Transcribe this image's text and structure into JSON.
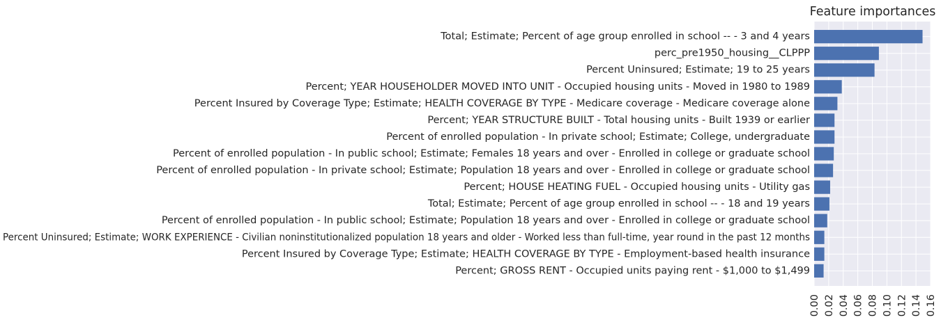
{
  "chart_data": {
    "type": "bar",
    "orientation": "horizontal",
    "title": "Feature importances",
    "xlabel": "",
    "ylabel": "",
    "xlim": [
      0,
      0.16
    ],
    "xticks": [
      "0.00",
      "0.02",
      "0.04",
      "0.06",
      "0.08",
      "0.10",
      "0.12",
      "0.14",
      "0.16"
    ],
    "grid": true,
    "bar_color": "#4c72b0",
    "background_color": "#eaeaf2",
    "grid_color": "#ffffff",
    "categories": [
      "Total; Estimate; Percent of age group enrolled in school -- - 3 and 4 years",
      "perc_pre1950_housing__CLPPP",
      "Percent Uninsured; Estimate; 19 to 25 years",
      "Percent; YEAR HOUSEHOLDER MOVED INTO UNIT - Occupied housing units - Moved in 1980 to 1989",
      "Percent Insured by  Coverage Type; Estimate; HEALTH COVERAGE BY TYPE - Medicare coverage - Medicare coverage alone",
      "Percent; YEAR STRUCTURE BUILT - Total housing units - Built 1939 or earlier",
      "Percent of enrolled population  - In private school; Estimate; College, undergraduate",
      "Percent of enrolled population  - In public school; Estimate; Females 18 years and over - Enrolled in college or graduate school",
      "Percent of enrolled population  - In private school; Estimate; Population 18 years and over - Enrolled in college or graduate school",
      "Percent; HOUSE HEATING FUEL - Occupied housing units - Utility gas",
      "Total; Estimate; Percent of age group enrolled in school -- - 18 and 19 years",
      "Percent of enrolled population  - In public school; Estimate; Population 18 years and over - Enrolled in college or graduate school",
      "Percent Uninsured; Estimate; WORK EXPERIENCE - Civilian noninstitutionalized population 18 years and older - Worked less than full-time, year round in the past 12 months",
      "Percent Insured by  Coverage Type; Estimate; HEALTH COVERAGE BY TYPE - Employment-based health insurance",
      "Percent; GROSS RENT - Occupied units paying rent - $1,000 to $1,499"
    ],
    "values": [
      0.149,
      0.089,
      0.083,
      0.038,
      0.032,
      0.028,
      0.028,
      0.027,
      0.026,
      0.022,
      0.021,
      0.018,
      0.014,
      0.014,
      0.013
    ]
  }
}
